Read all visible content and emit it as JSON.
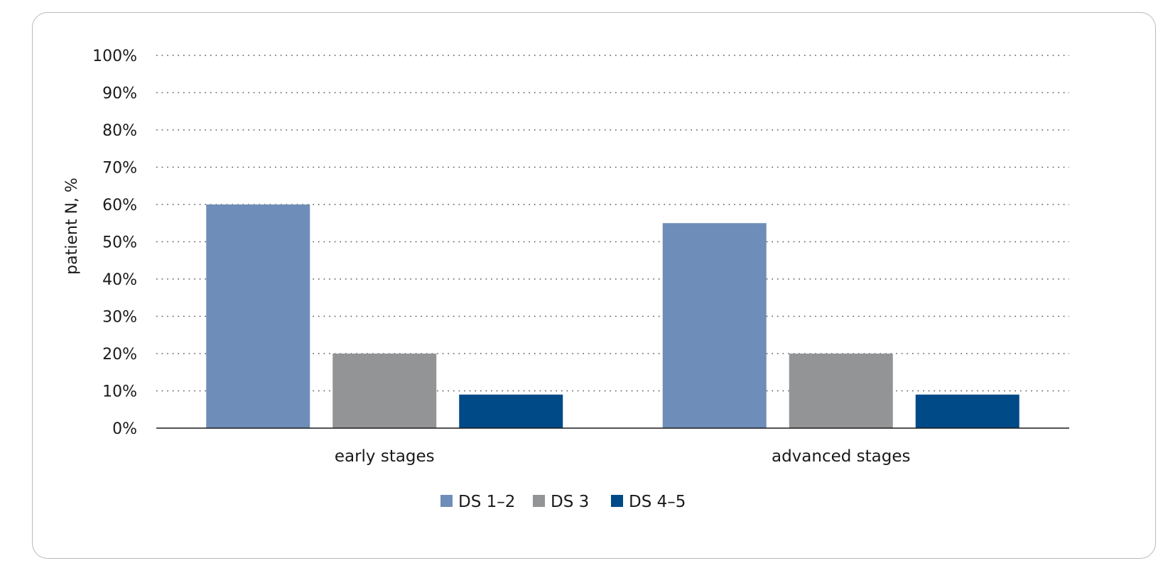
{
  "chart_data": {
    "type": "bar",
    "categories": [
      "early stages",
      "advanced stages"
    ],
    "series": [
      {
        "name": "DS 1–2",
        "values": [
          60,
          55
        ],
        "color": "#6f8db9"
      },
      {
        "name": "DS 3",
        "values": [
          20,
          20
        ],
        "color": "#939496"
      },
      {
        "name": "DS 4–5",
        "values": [
          9,
          9
        ],
        "color": "#004a87"
      }
    ],
    "ylabel": "patient N,  %",
    "xlabel": "",
    "title": "",
    "ylim": [
      0,
      100
    ],
    "yticks": [
      "0%",
      "10%",
      "20%",
      "30%",
      "40%",
      "50%",
      "60%",
      "70%",
      "80%",
      "90%",
      "100%"
    ],
    "grid": true,
    "legend_position": "bottom-center"
  }
}
